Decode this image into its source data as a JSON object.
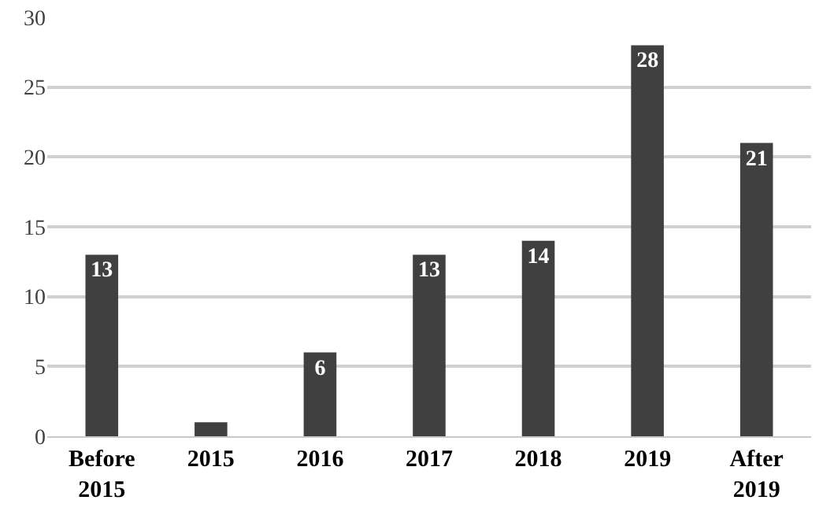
{
  "chart_data": {
    "type": "bar",
    "categories": [
      "Before 2015",
      "2015",
      "2016",
      "2017",
      "2018",
      "2019",
      "After 2019"
    ],
    "values": [
      13,
      1,
      6,
      13,
      14,
      28,
      21
    ],
    "value_labels": [
      "13",
      null,
      "6",
      "13",
      "14",
      "28",
      "21"
    ],
    "color": "#404040",
    "ylim": [
      0,
      30
    ],
    "yticks": [
      0,
      5,
      10,
      15,
      20,
      25,
      30
    ],
    "grid": "y",
    "legend": false
  }
}
